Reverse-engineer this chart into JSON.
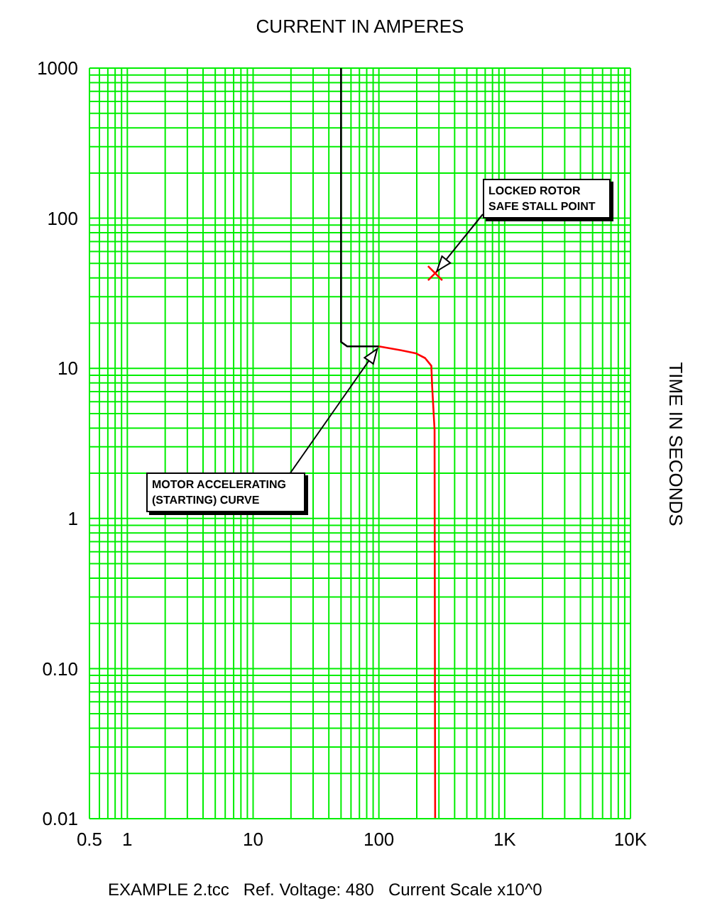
{
  "chart_data": {
    "type": "line",
    "title": "CURRENT IN AMPERES",
    "ylabel": "TIME IN SECONDS",
    "log": "xy",
    "grid": true,
    "marker": "none",
    "xlim": [
      0.5,
      10000
    ],
    "ylim": [
      0.01,
      1000
    ],
    "xticks": [
      0.5,
      {
        "value": 0.6,
        "label": null
      },
      {
        "value": 0.7,
        "label": null
      },
      {
        "value": 0.8,
        "label": null
      },
      {
        "value": 0.9,
        "label": null
      },
      1,
      {
        "value": 2,
        "label": null
      },
      {
        "value": 3,
        "label": null
      },
      {
        "value": 4,
        "label": null
      },
      {
        "value": 5,
        "label": null
      },
      {
        "value": 6,
        "label": null
      },
      {
        "value": 7,
        "label": null
      },
      {
        "value": 8,
        "label": null
      },
      {
        "value": 9,
        "label": null
      },
      10,
      {
        "value": 20,
        "label": null
      },
      {
        "value": 30,
        "label": null
      },
      {
        "value": 40,
        "label": null
      },
      {
        "value": 50,
        "label": null
      },
      {
        "value": 60,
        "label": null
      },
      {
        "value": 70,
        "label": null
      },
      {
        "value": 80,
        "label": null
      },
      {
        "value": 90,
        "label": null
      },
      100,
      {
        "value": 200,
        "label": null
      },
      {
        "value": 300,
        "label": null
      },
      {
        "value": 400,
        "label": null
      },
      {
        "value": 500,
        "label": null
      },
      {
        "value": 600,
        "label": null
      },
      {
        "value": 700,
        "label": null
      },
      {
        "value": 800,
        "label": null
      },
      {
        "value": 900,
        "label": null
      },
      {
        "value": 1000,
        "label": "1K"
      },
      {
        "value": 2000,
        "label": null
      },
      {
        "value": 3000,
        "label": null
      },
      {
        "value": 4000,
        "label": null
      },
      {
        "value": 5000,
        "label": null
      },
      {
        "value": 6000,
        "label": null
      },
      {
        "value": 7000,
        "label": null
      },
      {
        "value": 8000,
        "label": null
      },
      {
        "value": 9000,
        "label": null
      },
      {
        "value": 10000,
        "label": "10K"
      }
    ],
    "yticks": [
      0.01,
      {
        "value": 0.02,
        "label": null
      },
      {
        "value": 0.03,
        "label": null
      },
      {
        "value": 0.04,
        "label": null
      },
      {
        "value": 0.05,
        "label": null
      },
      {
        "value": 0.06,
        "label": null
      },
      {
        "value": 0.07,
        "label": null
      },
      {
        "value": 0.08,
        "label": null
      },
      {
        "value": 0.09,
        "label": null
      },
      {
        "value": 0.1,
        "label": "0.10"
      },
      {
        "value": 0.2,
        "label": null
      },
      {
        "value": 0.3,
        "label": null
      },
      {
        "value": 0.4,
        "label": null
      },
      {
        "value": 0.5,
        "label": null
      },
      {
        "value": 0.6,
        "label": null
      },
      {
        "value": 0.7,
        "label": null
      },
      {
        "value": 0.8,
        "label": null
      },
      {
        "value": 0.9,
        "label": null
      },
      1,
      {
        "value": 2,
        "label": null
      },
      {
        "value": 3,
        "label": null
      },
      {
        "value": 4,
        "label": null
      },
      {
        "value": 5,
        "label": null
      },
      {
        "value": 6,
        "label": null
      },
      {
        "value": 7,
        "label": null
      },
      {
        "value": 8,
        "label": null
      },
      {
        "value": 9,
        "label": null
      },
      10,
      {
        "value": 20,
        "label": null
      },
      {
        "value": 30,
        "label": null
      },
      {
        "value": 40,
        "label": null
      },
      {
        "value": 50,
        "label": null
      },
      {
        "value": 60,
        "label": null
      },
      {
        "value": 70,
        "label": null
      },
      {
        "value": 80,
        "label": null
      },
      {
        "value": 90,
        "label": null
      },
      100,
      {
        "value": 200,
        "label": null
      },
      {
        "value": 300,
        "label": null
      },
      {
        "value": 400,
        "label": null
      },
      {
        "value": 500,
        "label": null
      },
      {
        "value": 600,
        "label": null
      },
      {
        "value": 700,
        "label": null
      },
      {
        "value": 800,
        "label": null
      },
      {
        "value": 900,
        "label": null
      },
      1000
    ],
    "series": [
      {
        "color": "#000000",
        "x": [
          50,
          50,
          56,
          100
        ],
        "values": [
          1000,
          15,
          14,
          14
        ]
      },
      {
        "color": "#ff0000",
        "x": [
          100,
          150,
          196,
          233,
          261,
          265,
          277,
          280
        ],
        "values": [
          14,
          13.2,
          12.6,
          11.7,
          10.4,
          7.6,
          3.9,
          0.01
        ]
      },
      {
        "type": "scatter",
        "marker": "cross",
        "color": "#ff0000",
        "x": [
          280
        ],
        "values": [
          43
        ]
      }
    ],
    "annotations": [
      {
        "text": "LOCKED ROTOR\nSAFE STALL POINT",
        "x": 280,
        "y": 43
      },
      {
        "text": "MOTOR ACCELERATING\n(STARTING) CURVE",
        "x": 100,
        "y": 14
      },
      "EXAMPLE 2.tcc   Ref. Voltage: 480   Current Scale x10^0"
    ]
  }
}
